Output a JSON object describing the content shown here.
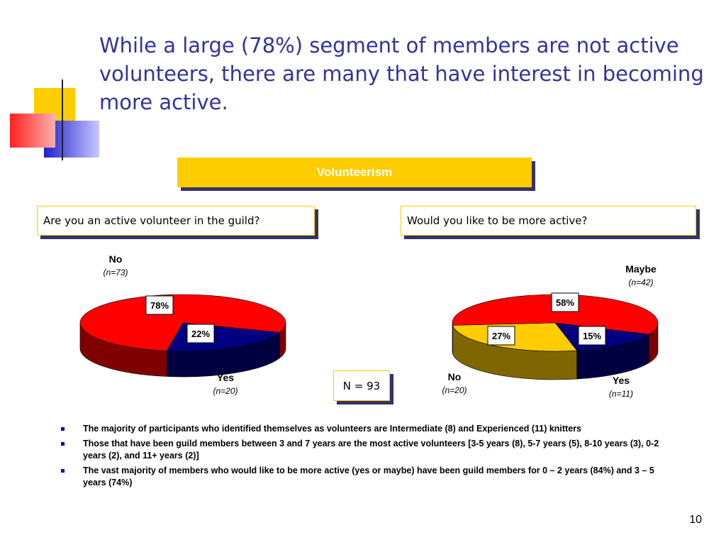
{
  "title": "While a large (78%) segment of members are not active volunteers, there are many that have interest in becoming more active.",
  "banner": "Volunteerism",
  "chart_data": [
    {
      "type": "pie",
      "question": "Are you an active volunteer in the guild?",
      "categories": [
        "No",
        "Yes"
      ],
      "annotations": [
        "(n=73)",
        "(n=20)"
      ],
      "values": [
        78,
        22
      ],
      "value_labels": [
        "78%",
        "22%"
      ],
      "colors": [
        "#ff0000",
        "#000080"
      ]
    },
    {
      "type": "pie",
      "question": "Would you like to be more active?",
      "categories": [
        "Maybe",
        "Yes",
        "No"
      ],
      "annotations": [
        "(n=42)",
        "(n=11)",
        "(n=20)"
      ],
      "values": [
        58,
        15,
        27
      ],
      "value_labels": [
        "58%",
        "15%",
        "27%"
      ],
      "colors": [
        "#ff0000",
        "#000080",
        "#ffcc00"
      ]
    }
  ],
  "sample_size": "N = 93",
  "bullets": [
    "The majority of participants who identified themselves as volunteers are Intermediate (8) and Experienced (11) knitters",
    "Those that have been guild members between 3 and 7 years are the most active volunteers [3-5 years (8), 5-7 years (5), 8-10 years (3), 0-2 years (2), and 11+ years (2)]",
    "The vast majority of members who would like to be more active (yes or maybe) have been guild members for 0 – 2 years (84%) and 3 – 5 years (74%)"
  ],
  "page_number": "10"
}
